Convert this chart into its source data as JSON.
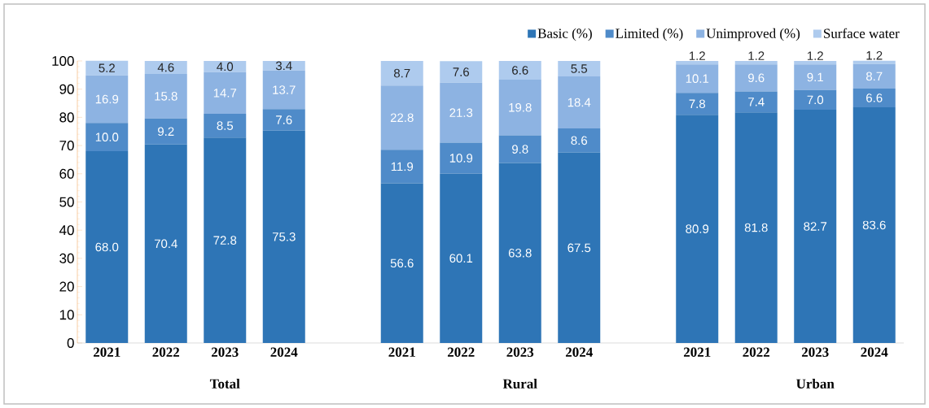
{
  "chart_data": {
    "type": "bar",
    "stacked": true,
    "legend": "top right",
    "grid": false,
    "categories": [
      "2021",
      "2022",
      "2023",
      "2024",
      null,
      "2021",
      "2022",
      "2023",
      "2024",
      null,
      "2021",
      "2022",
      "2023",
      "2024"
    ],
    "series": [
      {
        "name": "Basic (%)",
        "color": "#2e75b6",
        "values": [
          68.0,
          70.4,
          72.8,
          75.3,
          null,
          56.6,
          60.1,
          63.8,
          67.5,
          null,
          80.9,
          81.8,
          82.7,
          83.6
        ],
        "value_labels": [
          "68.0",
          "70.4",
          "72.8",
          "75.3",
          null,
          "56.6",
          "60.1",
          "63.8",
          "67.5",
          null,
          "80.9",
          "81.8",
          "82.7",
          "83.6"
        ]
      },
      {
        "name": "Limited (%)",
        "color": "#4f8bc9",
        "values": [
          10.0,
          9.2,
          8.5,
          7.6,
          null,
          11.9,
          10.9,
          9.8,
          8.6,
          null,
          7.8,
          7.4,
          7.0,
          6.6
        ],
        "value_labels": [
          "10.0",
          "9.2",
          "8.5",
          "7.6",
          null,
          "11.9",
          "10.9",
          "9.8",
          "8.6",
          null,
          "7.8",
          "7.4",
          "7.0",
          "6.6"
        ]
      },
      {
        "name": "Unimproved (%)",
        "color": "#8db3e2",
        "values": [
          16.9,
          15.8,
          14.7,
          13.7,
          null,
          22.8,
          21.3,
          19.8,
          18.4,
          null,
          10.1,
          9.6,
          9.1,
          8.7
        ],
        "value_labels": [
          "16.9",
          "15.8",
          "14.7",
          "13.7",
          null,
          "22.8",
          "21.3",
          "19.8",
          "18.4",
          null,
          "10.1",
          "9.6",
          "9.1",
          "8.7"
        ]
      },
      {
        "name": "Surface water",
        "color": "#aecbee",
        "values": [
          5.2,
          4.6,
          4.0,
          3.4,
          null,
          8.7,
          7.6,
          6.6,
          5.5,
          null,
          1.2,
          1.2,
          1.2,
          1.2
        ],
        "value_labels": [
          "5.2",
          "4.6",
          "4.0",
          "3.4",
          null,
          "8.7",
          "7.6",
          "6.6",
          "5.5",
          null,
          "1.2",
          "1.2",
          "1.2",
          "1.2"
        ]
      }
    ],
    "ylim": [
      0,
      100
    ],
    "yticks": [
      0,
      10,
      20,
      30,
      40,
      50,
      60,
      70,
      80,
      90,
      100
    ],
    "annotations": [
      "Total",
      "Rural",
      "Urban"
    ]
  }
}
